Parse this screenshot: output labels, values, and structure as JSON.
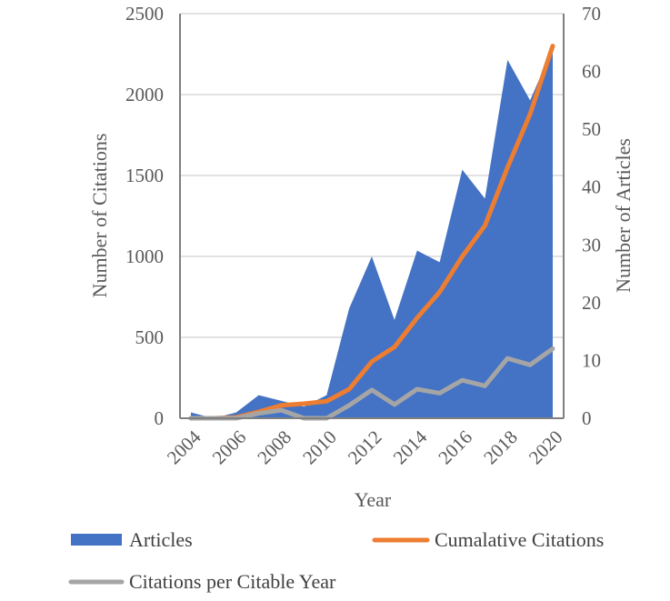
{
  "chart_data": {
    "type": "area",
    "x": [
      2004,
      2005,
      2006,
      2007,
      2008,
      2009,
      2010,
      2011,
      2012,
      2013,
      2014,
      2015,
      2016,
      2017,
      2018,
      2019,
      2020
    ],
    "x_tick_labels": [
      "2004",
      "2006",
      "2008",
      "2010",
      "2012",
      "2014",
      "2016",
      "2018",
      "2020"
    ],
    "xlabel": "Year",
    "ylabel_left": "Number of Citations",
    "ylabel_right": "Number of Articles",
    "ylim_left": [
      0,
      2500
    ],
    "ylim_right": [
      0,
      70
    ],
    "yticks_left": [
      "0",
      "500",
      "1000",
      "1500",
      "2000",
      "2500"
    ],
    "yticks_right": [
      "0",
      "10",
      "20",
      "30",
      "40",
      "50",
      "60",
      "70"
    ],
    "grid": true,
    "legend_position": "bottom",
    "series": [
      {
        "name": "Articles",
        "kind": "area",
        "axis": "right",
        "color": "#4472C4",
        "values": [
          1,
          0,
          1,
          4,
          3,
          2,
          4,
          19,
          28,
          17,
          29,
          27,
          43,
          38,
          62,
          55,
          64
        ]
      },
      {
        "name": "Cumalative Citations",
        "kind": "line",
        "axis": "left",
        "color": "#ED7D31",
        "values": [
          0,
          0,
          5,
          40,
          80,
          90,
          105,
          180,
          350,
          440,
          620,
          780,
          1000,
          1190,
          1550,
          1880,
          2300
        ]
      },
      {
        "name": "Citations per Citable Year",
        "kind": "line",
        "axis": "left",
        "color": "#A5A5A5",
        "values": [
          0,
          0,
          0,
          30,
          50,
          0,
          0,
          80,
          175,
          85,
          180,
          155,
          235,
          200,
          370,
          330,
          430
        ]
      }
    ]
  }
}
